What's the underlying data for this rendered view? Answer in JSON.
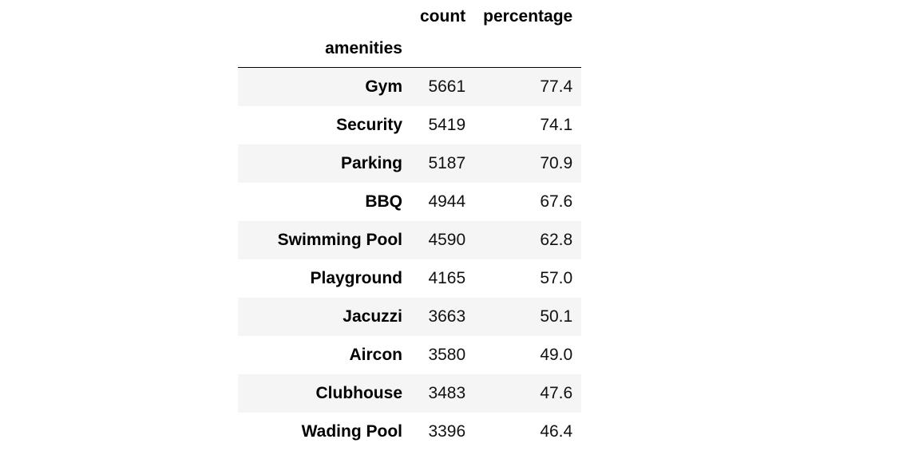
{
  "table": {
    "columns": [
      "count",
      "percentage"
    ],
    "index_name": "amenities",
    "rows": [
      {
        "label": "Gym",
        "count": "5661",
        "percentage": "77.4"
      },
      {
        "label": "Security",
        "count": "5419",
        "percentage": "74.1"
      },
      {
        "label": "Parking",
        "count": "5187",
        "percentage": "70.9"
      },
      {
        "label": "BBQ",
        "count": "4944",
        "percentage": "67.6"
      },
      {
        "label": "Swimming Pool",
        "count": "4590",
        "percentage": "62.8"
      },
      {
        "label": "Playground",
        "count": "4165",
        "percentage": "57.0"
      },
      {
        "label": "Jacuzzi",
        "count": "3663",
        "percentage": "50.1"
      },
      {
        "label": "Aircon",
        "count": "3580",
        "percentage": "49.0"
      },
      {
        "label": "Clubhouse",
        "count": "3483",
        "percentage": "47.6"
      },
      {
        "label": "Wading Pool",
        "count": "3396",
        "percentage": "46.4"
      }
    ]
  }
}
